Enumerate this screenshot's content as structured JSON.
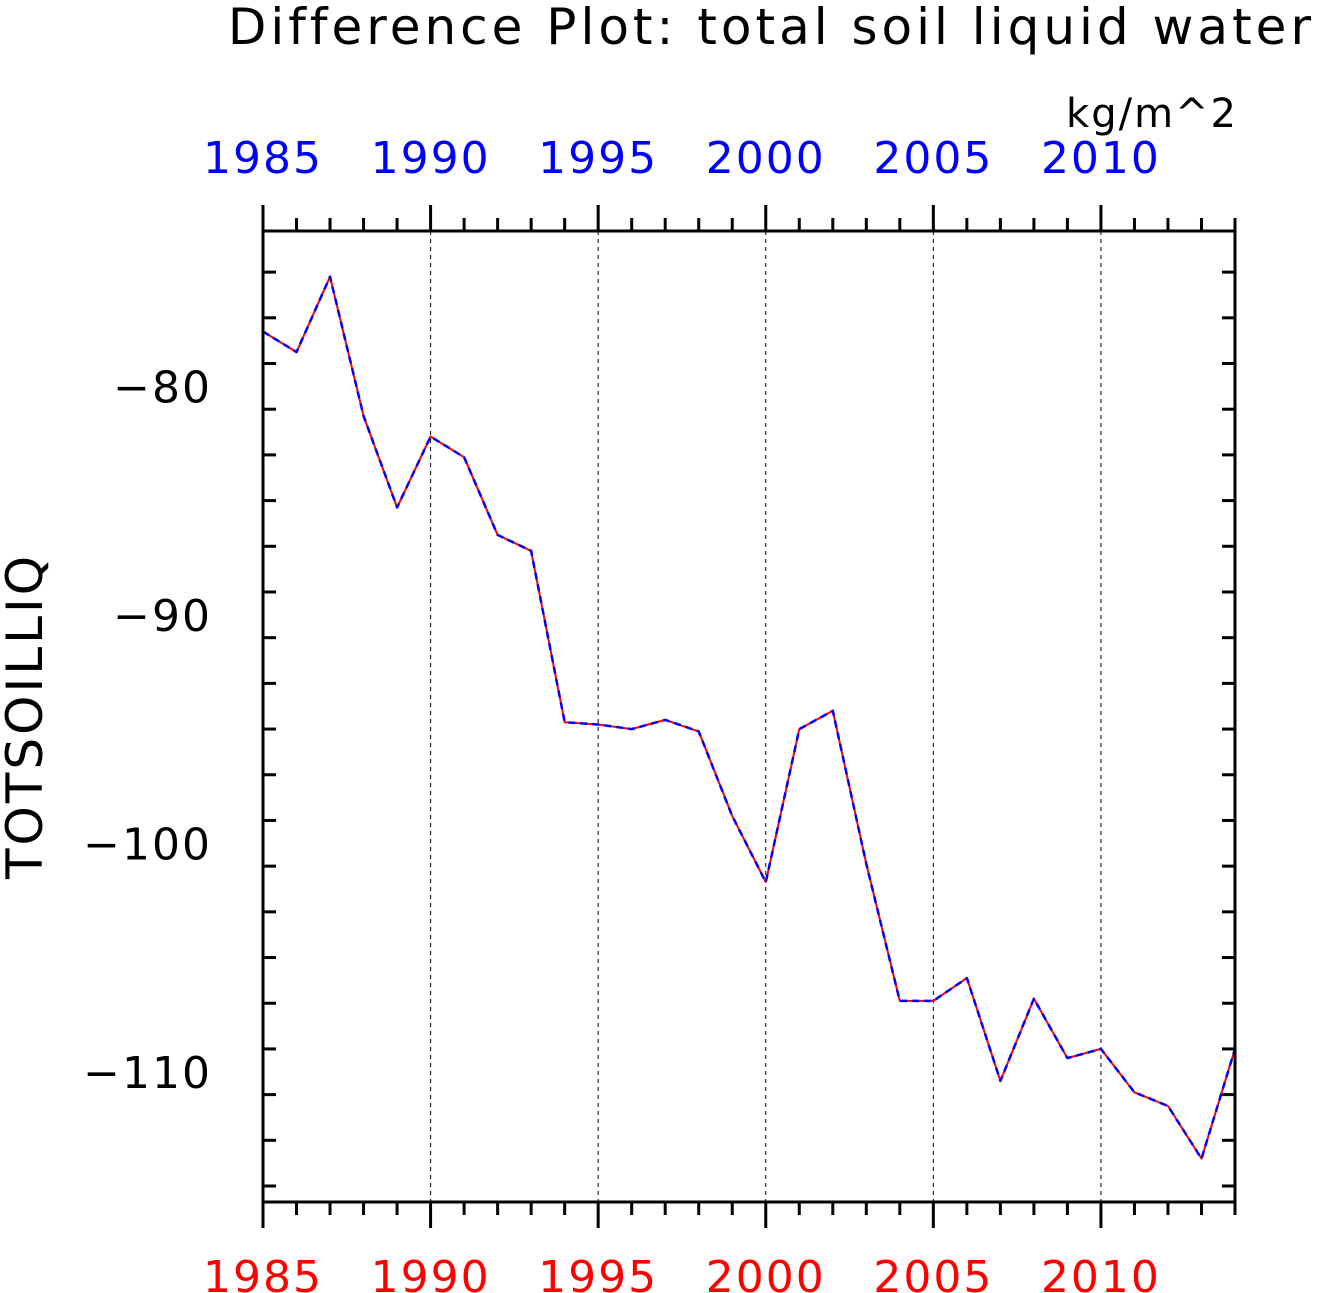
{
  "chart_data": {
    "type": "line",
    "title": "Difference Plot: total soil liquid water",
    "units": "kg/m^2",
    "ylabel": "TOTSOILLIQ",
    "xlim": [
      1985,
      2014
    ],
    "ylim": [
      -115.7,
      -73.2
    ],
    "x_major_ticks": [
      1985,
      1990,
      1995,
      2000,
      2005,
      2010
    ],
    "x_tick_labels": [
      "1985",
      "1990",
      "1995",
      "2000",
      "2005",
      "2010"
    ],
    "y_major_ticks": [
      -80,
      -90,
      -100,
      -110
    ],
    "y_tick_labels": [
      "−80",
      "−90",
      "−100",
      "−110"
    ],
    "grid": "vertical dashed lines at major x ticks",
    "bottom_axis_label_color": "#ff0000",
    "top_axis_label_color": "#0000ff",
    "x": [
      1985,
      1986,
      1987,
      1988,
      1989,
      1990,
      1991,
      1992,
      1993,
      1994,
      1995,
      1996,
      1997,
      1998,
      1999,
      2000,
      2001,
      2002,
      2003,
      2004,
      2005,
      2006,
      2007,
      2008,
      2009,
      2010,
      2011,
      2012,
      2013,
      2014
    ],
    "series": [
      {
        "color": "#ff0000",
        "style": "solid",
        "values": [
          -77.6,
          -78.5,
          -75.2,
          -81.3,
          -85.3,
          -82.2,
          -83.1,
          -86.5,
          -87.2,
          -94.7,
          -94.8,
          -95.0,
          -94.6,
          -95.1,
          -98.8,
          -101.7,
          -95.0,
          -94.2,
          -100.9,
          -106.9,
          -106.9,
          -105.9,
          -110.4,
          -106.8,
          -109.4,
          -109.0,
          -110.9,
          -111.5,
          -113.8,
          -109.0
        ]
      },
      {
        "color": "#0000ff",
        "style": "dashed",
        "values": [
          -77.6,
          -78.5,
          -75.2,
          -81.3,
          -85.3,
          -82.2,
          -83.1,
          -86.5,
          -87.2,
          -94.7,
          -94.8,
          -95.0,
          -94.6,
          -95.1,
          -98.8,
          -101.7,
          -95.0,
          -94.2,
          -100.9,
          -106.9,
          -106.9,
          -105.9,
          -110.4,
          -106.8,
          -109.4,
          -109.0,
          -110.9,
          -111.5,
          -113.8,
          -109.0
        ]
      }
    ]
  }
}
